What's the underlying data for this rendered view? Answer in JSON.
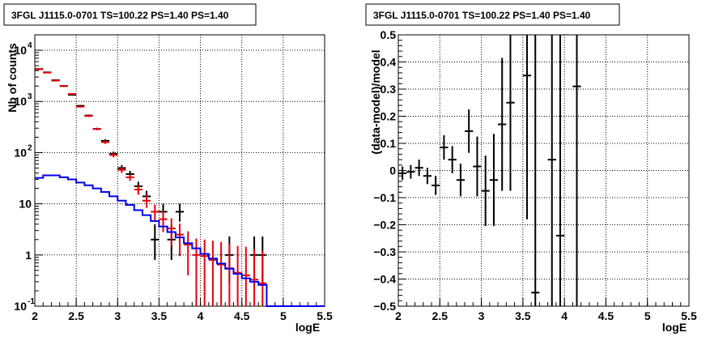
{
  "chart_data": [
    {
      "type": "histogram",
      "title": "3FGL J1115.0-0701 TS=100.22 PS=1.40 PS=1.40",
      "xlabel": "logE",
      "ylabel": "Nb of counts",
      "xlim": [
        2,
        5.5
      ],
      "ylim": [
        0.1,
        20000
      ],
      "yscale": "log",
      "grid": true,
      "x_ticks": [
        "2",
        "2.5",
        "3",
        "3.5",
        "4",
        "4.5",
        "5",
        "5.5"
      ],
      "y_ticks": [
        {
          "v": 0.1,
          "label": "10",
          "sup": "-1"
        },
        {
          "v": 1,
          "label": "1",
          "sup": ""
        },
        {
          "v": 10,
          "label": "10",
          "sup": ""
        },
        {
          "v": 100,
          "label": "10",
          "sup": "2"
        },
        {
          "v": 1000,
          "label": "10",
          "sup": "3"
        },
        {
          "v": 10000,
          "label": "10",
          "sup": "4"
        }
      ],
      "bin_width": 0.1,
      "series": [
        {
          "role": "data",
          "color": "#000000",
          "points": [
            {
              "x": 2.05,
              "y": 4300,
              "lo": 4200,
              "hi": 4400
            },
            {
              "x": 2.15,
              "y": 3700,
              "lo": 3600,
              "hi": 3800
            },
            {
              "x": 2.25,
              "y": 2600,
              "lo": 2520,
              "hi": 2680
            },
            {
              "x": 2.35,
              "y": 2000,
              "lo": 1920,
              "hi": 2080
            },
            {
              "x": 2.45,
              "y": 1350,
              "lo": 1300,
              "hi": 1400
            },
            {
              "x": 2.55,
              "y": 820,
              "lo": 790,
              "hi": 850
            },
            {
              "x": 2.65,
              "y": 530,
              "lo": 505,
              "hi": 555
            },
            {
              "x": 2.75,
              "y": 290,
              "lo": 275,
              "hi": 305
            },
            {
              "x": 2.85,
              "y": 170,
              "lo": 158,
              "hi": 182
            },
            {
              "x": 2.95,
              "y": 95,
              "lo": 86,
              "hi": 104
            },
            {
              "x": 3.05,
              "y": 50,
              "lo": 44,
              "hi": 57
            },
            {
              "x": 3.15,
              "y": 38,
              "lo": 32,
              "hi": 44
            },
            {
              "x": 3.25,
              "y": 22,
              "lo": 17,
              "hi": 27
            },
            {
              "x": 3.35,
              "y": 14,
              "lo": 10,
              "hi": 18
            },
            {
              "x": 3.45,
              "y": 2,
              "lo": 0.8,
              "hi": 4
            },
            {
              "x": 3.55,
              "y": 7,
              "lo": 4.5,
              "hi": 10
            },
            {
              "x": 3.65,
              "y": 2,
              "lo": 0.8,
              "hi": 4
            },
            {
              "x": 3.75,
              "y": 7,
              "lo": 4.5,
              "hi": 10
            },
            {
              "x": 4.35,
              "y": 1,
              "lo": 0.28,
              "hi": 2.3
            },
            {
              "x": 4.65,
              "y": 1,
              "lo": 0.28,
              "hi": 2.3
            },
            {
              "x": 4.75,
              "y": 1,
              "lo": 0.28,
              "hi": 2.3
            }
          ]
        },
        {
          "role": "model",
          "color": "#e8000b",
          "points": [
            {
              "x": 2.05,
              "y": 4250,
              "lo": 4150,
              "hi": 4350
            },
            {
              "x": 2.15,
              "y": 3650,
              "lo": 3560,
              "hi": 3740
            },
            {
              "x": 2.25,
              "y": 2550,
              "lo": 2470,
              "hi": 2630
            },
            {
              "x": 2.35,
              "y": 2000,
              "lo": 1930,
              "hi": 2070
            },
            {
              "x": 2.45,
              "y": 1400,
              "lo": 1350,
              "hi": 1450
            },
            {
              "x": 2.55,
              "y": 790,
              "lo": 760,
              "hi": 820
            },
            {
              "x": 2.65,
              "y": 520,
              "lo": 495,
              "hi": 545
            },
            {
              "x": 2.75,
              "y": 290,
              "lo": 275,
              "hi": 305
            },
            {
              "x": 2.85,
              "y": 160,
              "lo": 148,
              "hi": 172
            },
            {
              "x": 2.95,
              "y": 90,
              "lo": 81,
              "hi": 99
            },
            {
              "x": 3.05,
              "y": 46,
              "lo": 40,
              "hi": 52
            },
            {
              "x": 3.15,
              "y": 33,
              "lo": 28,
              "hi": 38
            },
            {
              "x": 3.25,
              "y": 19,
              "lo": 15,
              "hi": 23
            },
            {
              "x": 3.35,
              "y": 11.5,
              "lo": 8.3,
              "hi": 14.9
            },
            {
              "x": 3.45,
              "y": 7,
              "lo": 4.5,
              "hi": 9.6
            },
            {
              "x": 3.55,
              "y": 5,
              "lo": 2.8,
              "hi": 7.3
            },
            {
              "x": 3.65,
              "y": 3.3,
              "lo": 1.5,
              "hi": 5.2
            },
            {
              "x": 3.75,
              "y": 2.5,
              "lo": 0.95,
              "hi": 4.1
            },
            {
              "x": 3.85,
              "y": 1.6,
              "lo": 0.4,
              "hi": 2.9
            },
            {
              "x": 3.95,
              "y": 1,
              "lo": 0.1,
              "hi": 2.1
            },
            {
              "x": 4.05,
              "y": 0.95,
              "lo": 0.1,
              "hi": 2.0
            },
            {
              "x": 4.15,
              "y": 0.8,
              "lo": 0.1,
              "hi": 1.9
            },
            {
              "x": 4.25,
              "y": 0.65,
              "lo": 0.1,
              "hi": 1.8
            },
            {
              "x": 4.35,
              "y": 0.55,
              "lo": 0.1,
              "hi": 1.65
            },
            {
              "x": 4.45,
              "y": 0.45,
              "lo": 0.1,
              "hi": 1.5
            },
            {
              "x": 4.55,
              "y": 0.4,
              "lo": 0.1,
              "hi": 1.45
            },
            {
              "x": 4.65,
              "y": 0.33,
              "lo": 0.1,
              "hi": 1.3
            },
            {
              "x": 4.75,
              "y": 0.28,
              "lo": 0.1,
              "hi": 1.2
            }
          ]
        },
        {
          "role": "component",
          "color": "#0000ee",
          "step": true,
          "x_edges": [
            2.0,
            2.1,
            2.2,
            2.3,
            2.4,
            2.5,
            2.6,
            2.7,
            2.8,
            2.9,
            3.0,
            3.1,
            3.2,
            3.3,
            3.4,
            3.5,
            3.6,
            3.7,
            3.8,
            3.9,
            4.0,
            4.1,
            4.2,
            4.3,
            4.4,
            4.5,
            4.6,
            4.7,
            4.8,
            4.9,
            5.0,
            5.1,
            5.2,
            5.3,
            5.4,
            5.5
          ],
          "values": [
            32,
            36,
            36,
            33,
            30,
            26,
            23,
            20,
            17,
            14,
            11.5,
            9.5,
            7.5,
            6,
            4.6,
            3.6,
            2.8,
            2.2,
            1.7,
            1.35,
            1.05,
            0.85,
            0.68,
            0.54,
            0.43,
            0.35,
            0.3,
            0.26,
            0.1,
            0.1,
            0.1,
            0.1,
            0.1,
            0.1,
            0.1
          ]
        }
      ]
    },
    {
      "type": "scatter",
      "title": "3FGL J1115.0-0701 TS=100.22 PS=1.40 PS=1.40",
      "xlabel": "logE",
      "ylabel": "(data-model)/model",
      "xlim": [
        2,
        5.5
      ],
      "ylim": [
        -0.5,
        0.5
      ],
      "grid": true,
      "x_ticks": [
        "2",
        "2.5",
        "3",
        "3.5",
        "4",
        "4.5",
        "5",
        "5.5"
      ],
      "y_ticks": [
        "−0.5",
        "−0.4",
        "−0.3",
        "−0.2",
        "−0.1",
        "0",
        "0.1",
        "0.2",
        "0.3",
        "0.4",
        "0.5"
      ],
      "y_tick_values": [
        -0.5,
        -0.4,
        -0.3,
        -0.2,
        -0.1,
        0,
        0.1,
        0.2,
        0.3,
        0.4,
        0.5
      ],
      "bin_width": 0.1,
      "series": [
        {
          "role": "residual",
          "color": "#000000",
          "points": [
            {
              "x": 2.05,
              "y": -0.01,
              "lo": -0.035,
              "hi": 0.015
            },
            {
              "x": 2.15,
              "y": -0.005,
              "lo": -0.03,
              "hi": 0.02
            },
            {
              "x": 2.25,
              "y": 0.01,
              "lo": -0.02,
              "hi": 0.04
            },
            {
              "x": 2.35,
              "y": -0.02,
              "lo": -0.05,
              "hi": 0.01
            },
            {
              "x": 2.45,
              "y": -0.055,
              "lo": -0.09,
              "hi": -0.02
            },
            {
              "x": 2.55,
              "y": 0.085,
              "lo": 0.04,
              "hi": 0.13
            },
            {
              "x": 2.65,
              "y": 0.04,
              "lo": -0.01,
              "hi": 0.09
            },
            {
              "x": 2.75,
              "y": -0.035,
              "lo": -0.095,
              "hi": 0.025
            },
            {
              "x": 2.85,
              "y": 0.145,
              "lo": 0.065,
              "hi": 0.225
            },
            {
              "x": 2.95,
              "y": 0.015,
              "lo": -0.095,
              "hi": 0.125
            },
            {
              "x": 3.05,
              "y": -0.075,
              "lo": -0.205,
              "hi": 0.055
            },
            {
              "x": 3.15,
              "y": -0.035,
              "lo": -0.205,
              "hi": 0.135
            },
            {
              "x": 3.25,
              "y": 0.17,
              "lo": -0.075,
              "hi": 0.415
            },
            {
              "x": 3.35,
              "y": 0.25,
              "lo": -0.075,
              "hi": 0.5
            },
            {
              "x": 3.55,
              "y": 0.35,
              "lo": -0.18,
              "hi": 0.5
            },
            {
              "x": 3.65,
              "y": -0.45,
              "lo": -0.5,
              "hi": 0.5
            },
            {
              "x": 3.85,
              "y": 0.04,
              "lo": -0.5,
              "hi": 0.5
            },
            {
              "x": 3.95,
              "y": -0.24,
              "lo": -0.5,
              "hi": 0.5
            },
            {
              "x": 4.15,
              "y": 0.31,
              "lo": -0.5,
              "hi": 0.5
            }
          ]
        }
      ]
    }
  ]
}
